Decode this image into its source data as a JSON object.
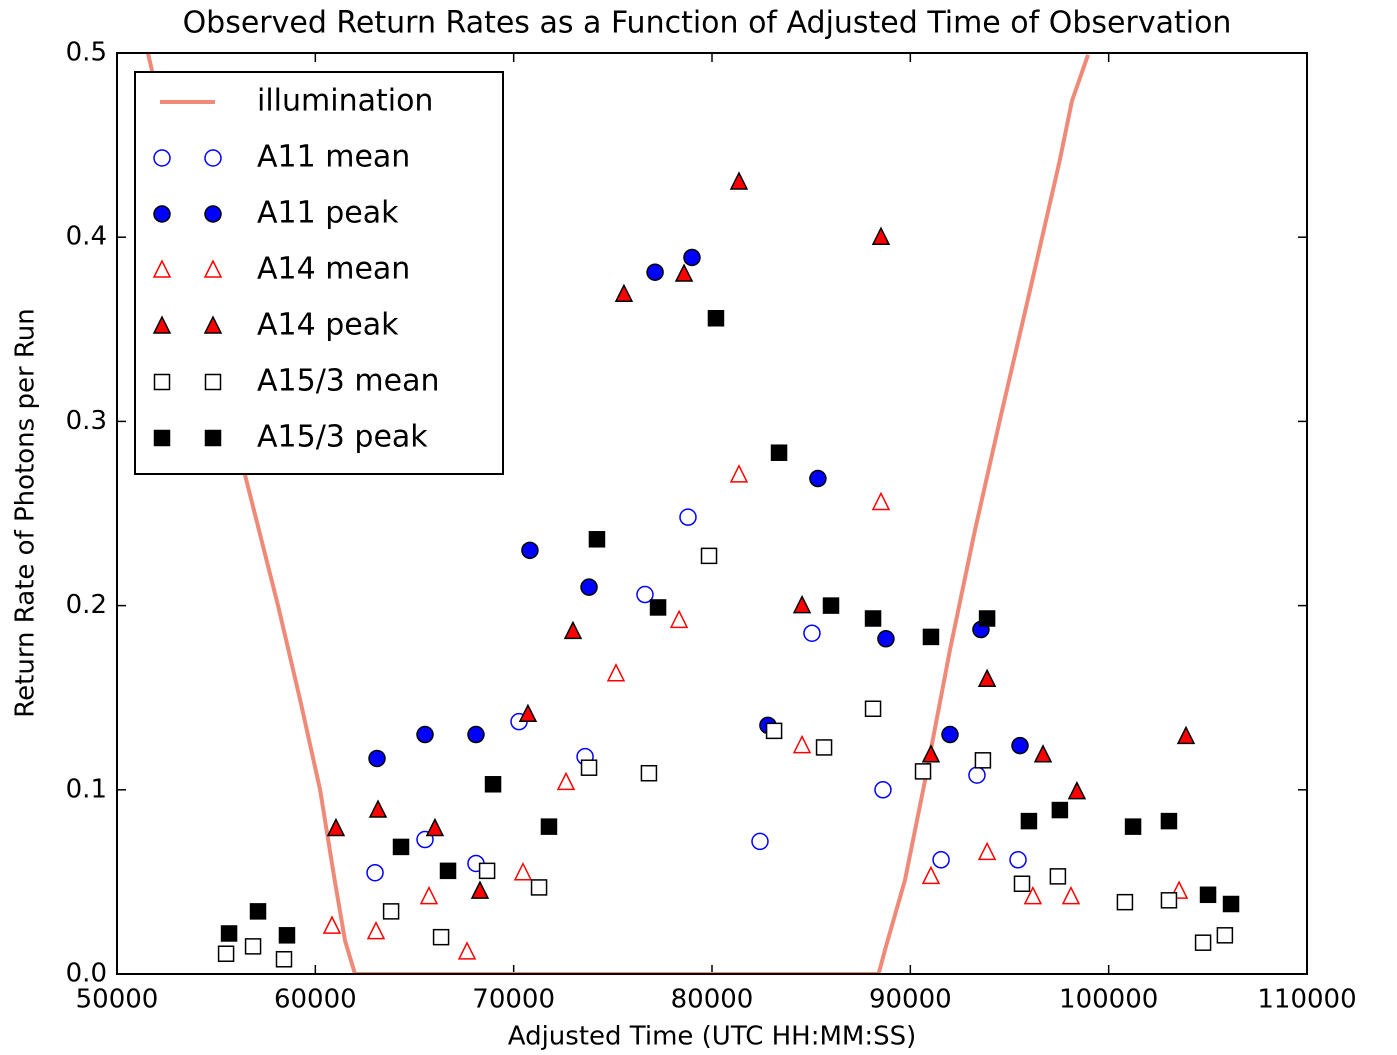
{
  "chart_data": {
    "type": "scatter",
    "title": "Observed Return Rates as a Function of Adjusted Time of Observation",
    "xlabel": "Adjusted Time (UTC HH:MM:SS)",
    "ylabel": "Return Rate of Photons per Run",
    "xlim": [
      50000,
      110000
    ],
    "ylim": [
      0,
      0.5
    ],
    "xticks": [
      50000,
      60000,
      70000,
      80000,
      90000,
      100000,
      110000
    ],
    "yticks": [
      {
        "value": 0,
        "label": "0.0"
      },
      0.1,
      0.2,
      0.3,
      0.4,
      0.5
    ],
    "legend": "upper left",
    "series": [
      {
        "name": "illumination",
        "kind": "line",
        "color": "#f08a78",
        "x": [
          51560,
          56500,
          58120,
          59230,
          60240,
          60990,
          61500,
          62000,
          88400,
          88720,
          89730,
          90740,
          92000,
          93260,
          94520,
          96030,
          97540,
          98150,
          98960
        ],
        "values": [
          0.5,
          0.269,
          0.2,
          0.149,
          0.1,
          0.05,
          0.018,
          0,
          0,
          0.013,
          0.051,
          0.105,
          0.176,
          0.241,
          0.301,
          0.371,
          0.442,
          0.474,
          0.499
        ]
      },
      {
        "name": "A11 mean",
        "kind": "marker",
        "marker": "circle",
        "filled": false,
        "color": "#0000ff",
        "x": [
          63010,
          65530,
          68100,
          70270,
          73600,
          76620,
          78790,
          82420,
          85040,
          88620,
          91550,
          93360,
          95430
        ],
        "values": [
          0.055,
          0.073,
          0.06,
          0.137,
          0.118,
          0.206,
          0.248,
          0.072,
          0.185,
          0.1,
          0.062,
          0.108,
          0.062
        ]
      },
      {
        "name": "A11 peak",
        "kind": "marker",
        "marker": "circle",
        "filled": true,
        "color": "#0000ff",
        "x": [
          63110,
          65530,
          68100,
          70820,
          73800,
          77130,
          78990,
          82820,
          85340,
          88770,
          92000,
          93560,
          95530
        ],
        "values": [
          0.117,
          0.13,
          0.13,
          0.23,
          0.21,
          0.381,
          0.389,
          0.135,
          0.269,
          0.182,
          0.13,
          0.187,
          0.124
        ]
      },
      {
        "name": "A14 mean",
        "kind": "marker",
        "marker": "triangle",
        "filled": false,
        "color": "#ff0000",
        "x": [
          60840,
          63060,
          65730,
          67650,
          70470,
          72640,
          75160,
          78340,
          81360,
          84540,
          88520,
          91040,
          93870,
          96180,
          98100,
          103550
        ],
        "values": [
          0.026,
          0.023,
          0.042,
          0.012,
          0.055,
          0.104,
          0.163,
          0.192,
          0.271,
          0.124,
          0.256,
          0.053,
          0.066,
          0.042,
          0.042,
          0.045
        ]
      },
      {
        "name": "A14 peak",
        "kind": "marker",
        "marker": "triangle",
        "filled": true,
        "color": "#ff0000",
        "x": [
          61040,
          63160,
          66030,
          68300,
          70720,
          72990,
          75560,
          78590,
          81360,
          84540,
          88520,
          91040,
          93870,
          96690,
          98400,
          103900
        ],
        "values": [
          0.079,
          0.089,
          0.079,
          0.045,
          0.141,
          0.186,
          0.369,
          0.38,
          0.43,
          0.2,
          0.4,
          0.119,
          0.16,
          0.119,
          0.099,
          0.129
        ]
      },
      {
        "name": "A15/3 mean",
        "kind": "marker",
        "marker": "square",
        "filled": false,
        "color": "#000000",
        "x": [
          55500,
          56860,
          58420,
          63820,
          66340,
          68660,
          71280,
          73800,
          76820,
          79850,
          83130,
          85650,
          88120,
          90640,
          93660,
          95630,
          97440,
          100820,
          103040,
          104760,
          105860
        ],
        "values": [
          0.011,
          0.015,
          0.008,
          0.034,
          0.02,
          0.056,
          0.047,
          0.112,
          0.109,
          0.227,
          0.132,
          0.123,
          0.144,
          0.11,
          0.116,
          0.049,
          0.053,
          0.039,
          0.04,
          0.017,
          0.021
        ]
      },
      {
        "name": "A15/3 peak",
        "kind": "marker",
        "marker": "square",
        "filled": true,
        "color": "#000000",
        "x": [
          55650,
          57110,
          58570,
          64320,
          66690,
          68960,
          71780,
          74200,
          77280,
          80200,
          83380,
          86000,
          88120,
          91040,
          93870,
          95980,
          97540,
          101230,
          103040,
          105010,
          106170
        ],
        "values": [
          0.022,
          0.034,
          0.021,
          0.069,
          0.056,
          0.103,
          0.08,
          0.236,
          0.199,
          0.356,
          0.283,
          0.2,
          0.193,
          0.183,
          0.193,
          0.083,
          0.089,
          0.08,
          0.083,
          0.043,
          0.038
        ]
      }
    ]
  }
}
